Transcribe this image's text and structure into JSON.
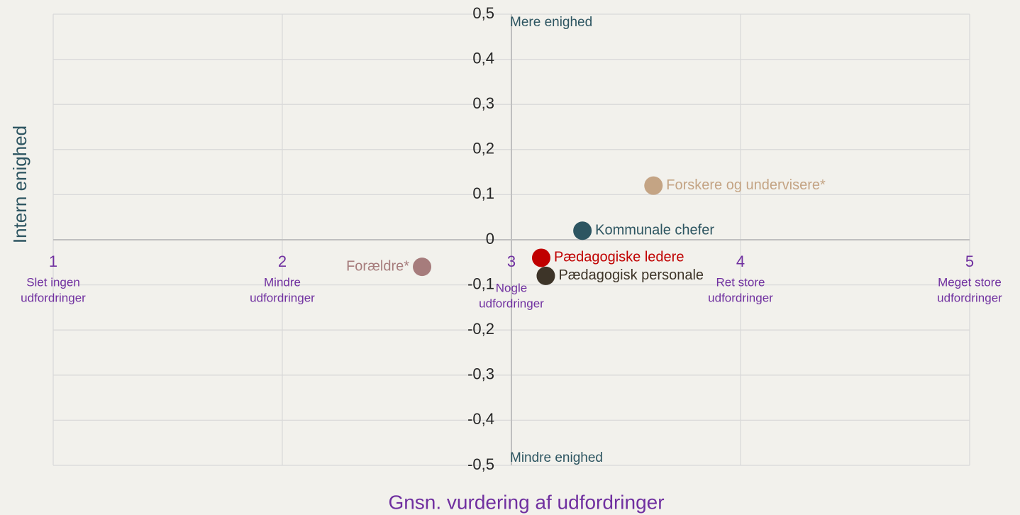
{
  "chart_data": {
    "type": "scatter",
    "xlabel": "Gnsn. vurdering af udfordringer",
    "ylabel": "Intern enighed",
    "annotations": {
      "top": "Mere enighed",
      "bottom": "Mindre enighed"
    },
    "xlim": [
      1,
      5
    ],
    "xticks": [
      1,
      2,
      3,
      4,
      5
    ],
    "xtick_descriptions": [
      [
        "Slet ingen",
        "udfordringer"
      ],
      [
        "Mindre",
        "udfordringer"
      ],
      [
        "Nogle",
        "udfordringer"
      ],
      [
        "Ret store",
        "udfordringer"
      ],
      [
        "Meget store",
        "udfordringer"
      ]
    ],
    "ylim": [
      -0.5,
      0.5
    ],
    "yticks": [
      {
        "value": -0.5,
        "label": "-0,5"
      },
      {
        "value": -0.4,
        "label": "-0,4"
      },
      {
        "value": -0.3,
        "label": "-0,3"
      },
      {
        "value": -0.2,
        "label": "-0,2"
      },
      {
        "value": -0.1,
        "label": "-0,1"
      },
      0,
      {
        "value": 0.1,
        "label": "0,1"
      },
      {
        "value": 0.2,
        "label": "0,2"
      },
      {
        "value": 0.3,
        "label": "0,3"
      },
      {
        "value": 0.4,
        "label": "0,4"
      },
      {
        "value": 0.5,
        "label": "0,5"
      }
    ],
    "grid": true,
    "series": [
      {
        "name": "Forældre*",
        "color": "#a67c7c",
        "x": [
          2.61
        ],
        "values": [
          -0.06
        ]
      },
      {
        "name": "Forskere og undervisere*",
        "color": "#c4a484",
        "x": [
          3.62
        ],
        "values": [
          0.12
        ]
      },
      {
        "name": "Kommunale chefer",
        "color": "#2d5561",
        "x": [
          3.31
        ],
        "values": [
          0.02
        ]
      },
      {
        "name": "Pædagogiske ledere",
        "color": "#c00000",
        "x": [
          3.13
        ],
        "values": [
          -0.04
        ]
      },
      {
        "name": "Pædagogisk personale",
        "color": "#3d3428",
        "x": [
          3.15
        ],
        "values": [
          -0.08
        ]
      }
    ]
  }
}
